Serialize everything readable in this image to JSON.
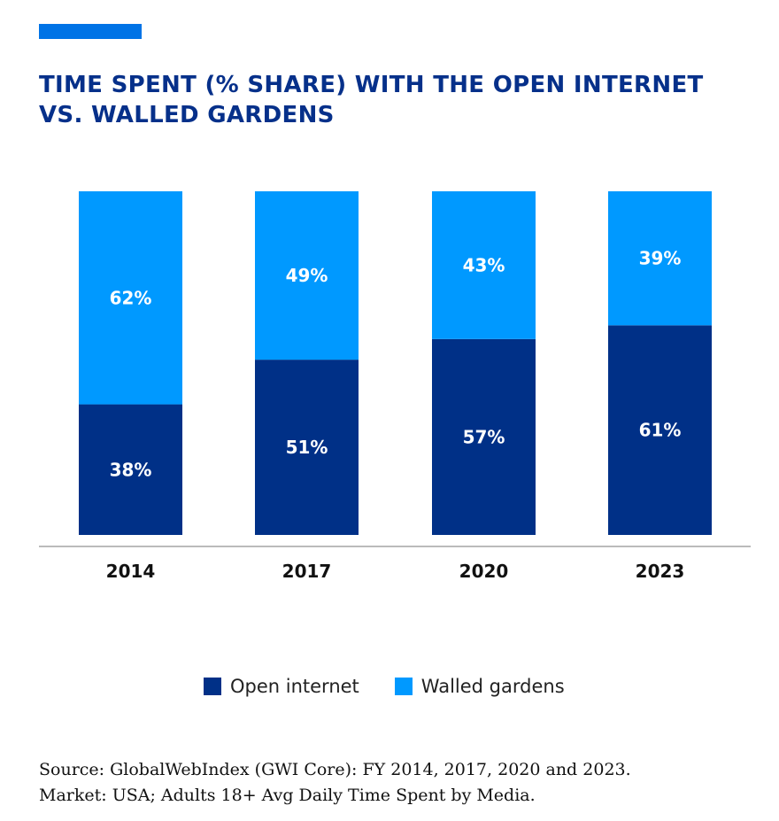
{
  "colors": {
    "accent": "#0073e6",
    "open": "#003087",
    "walled": "#0099ff",
    "title": "#06308a"
  },
  "chart_data": {
    "type": "bar",
    "stacked": true,
    "title": "TIME SPENT (% SHARE) WITH THE OPEN INTERNET VS. WALLED GARDENS",
    "categories": [
      "2014",
      "2017",
      "2020",
      "2023"
    ],
    "series": [
      {
        "name": "Open internet",
        "values": [
          38,
          51,
          57,
          61
        ],
        "labels": [
          "38%",
          "51%",
          "57%",
          "61%"
        ]
      },
      {
        "name": "Walled gardens",
        "values": [
          62,
          49,
          43,
          39
        ],
        "labels": [
          "62%",
          "49%",
          "43%",
          "39%"
        ]
      }
    ],
    "ylim": [
      0,
      100
    ],
    "grid": false,
    "legend": "bottom"
  },
  "source": [
    "Source: GlobalWebIndex (GWI Core): FY 2014, 2017, 2020 and 2023.",
    "Market: USA; Adults 18+ Avg Daily Time Spent by Media."
  ]
}
